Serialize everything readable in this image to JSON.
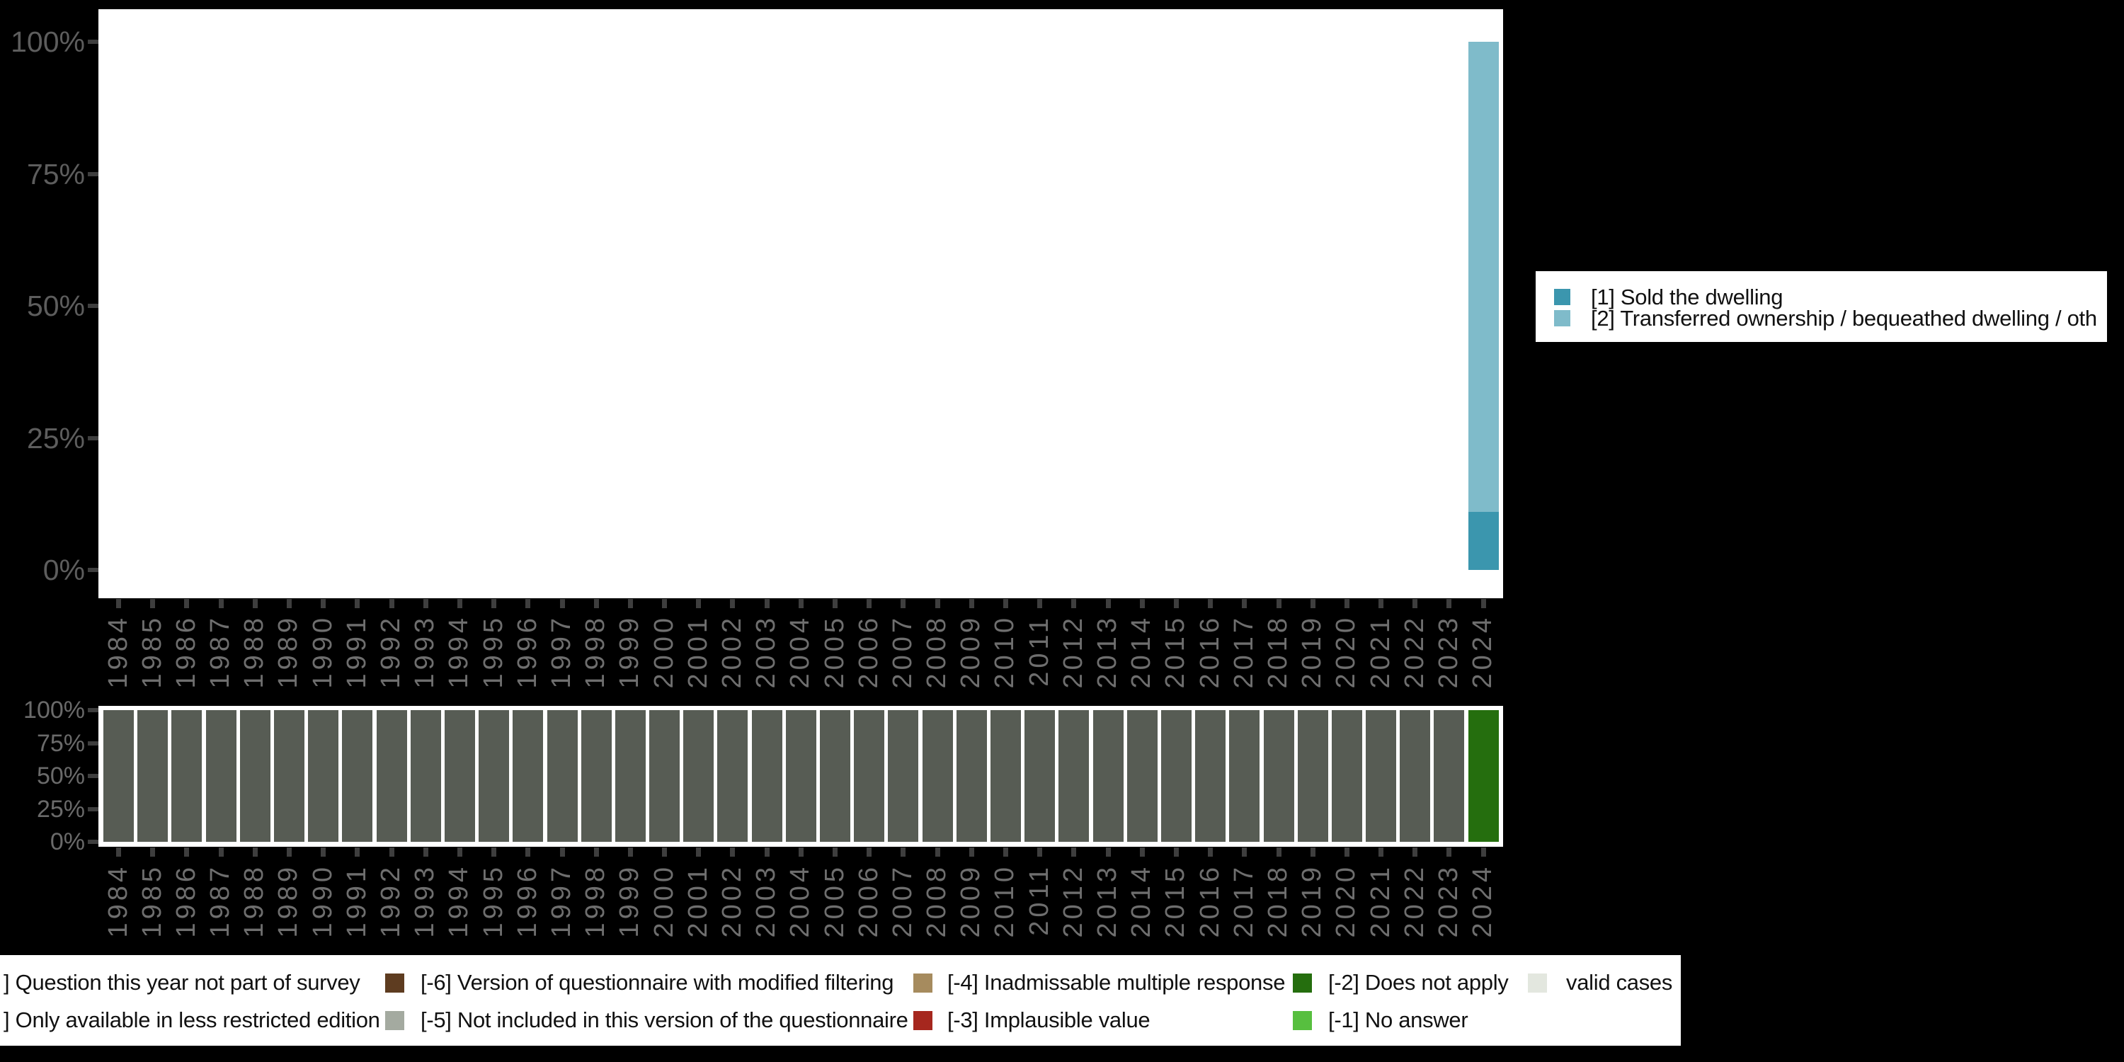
{
  "background_color": "#000000",
  "plot_background_color": "#ffffff",
  "chart_data": [
    {
      "id": "valid-answers-by-year",
      "type": "bar",
      "subtype": "stacked-percent-columns",
      "title": "",
      "xlabel": "",
      "ylabel": "",
      "ylim": [
        0,
        100
      ],
      "grid": false,
      "legend_position": "right",
      "y_ticks": [
        "100%",
        "75%",
        "50%",
        "25%",
        "0%"
      ],
      "categories": [
        "1984",
        "1985",
        "1986",
        "1987",
        "1988",
        "1989",
        "1990",
        "1991",
        "1992",
        "1993",
        "1994",
        "1995",
        "1996",
        "1997",
        "1998",
        "1999",
        "2000",
        "2001",
        "2002",
        "2003",
        "2004",
        "2005",
        "2006",
        "2007",
        "2008",
        "2009",
        "2010",
        "2011",
        "2012",
        "2013",
        "2014",
        "2015",
        "2016",
        "2017",
        "2018",
        "2019",
        "2020",
        "2021",
        "2022",
        "2023",
        "2024"
      ],
      "series": [
        {
          "name": "[1] Sold the dwelling",
          "color": "#3b96ae",
          "values": [
            0,
            0,
            0,
            0,
            0,
            0,
            0,
            0,
            0,
            0,
            0,
            0,
            0,
            0,
            0,
            0,
            0,
            0,
            0,
            0,
            0,
            0,
            0,
            0,
            0,
            0,
            0,
            0,
            0,
            0,
            0,
            0,
            0,
            0,
            0,
            0,
            0,
            0,
            0,
            0,
            11
          ]
        },
        {
          "name": "[2] Transferred ownership / bequeathed dwelling / oth",
          "color": "#7fbbca",
          "values": [
            0,
            0,
            0,
            0,
            0,
            0,
            0,
            0,
            0,
            0,
            0,
            0,
            0,
            0,
            0,
            0,
            0,
            0,
            0,
            0,
            0,
            0,
            0,
            0,
            0,
            0,
            0,
            0,
            0,
            0,
            0,
            0,
            0,
            0,
            0,
            0,
            0,
            0,
            0,
            0,
            89
          ]
        }
      ]
    },
    {
      "id": "missing-values-by-year",
      "type": "bar",
      "subtype": "stacked-percent-columns",
      "title": "",
      "xlabel": "",
      "ylabel": "",
      "ylim": [
        0,
        100
      ],
      "grid": false,
      "legend_position": "bottom",
      "y_ticks": [
        "100%",
        "75%",
        "50%",
        "25%",
        "0%"
      ],
      "categories": [
        "1984",
        "1985",
        "1986",
        "1987",
        "1988",
        "1989",
        "1990",
        "1991",
        "1992",
        "1993",
        "1994",
        "1995",
        "1996",
        "1997",
        "1998",
        "1999",
        "2000",
        "2001",
        "2002",
        "2003",
        "2004",
        "2005",
        "2006",
        "2007",
        "2008",
        "2009",
        "2010",
        "2011",
        "2012",
        "2013",
        "2014",
        "2015",
        "2016",
        "2017",
        "2018",
        "2019",
        "2020",
        "2021",
        "2022",
        "2023",
        "2024"
      ],
      "series": [
        {
          "name": "] Question this year not part of survey",
          "color": "#575c54",
          "values": [
            100,
            100,
            100,
            100,
            100,
            100,
            100,
            100,
            100,
            100,
            100,
            100,
            100,
            100,
            100,
            100,
            100,
            100,
            100,
            100,
            100,
            100,
            100,
            100,
            100,
            100,
            100,
            100,
            100,
            100,
            100,
            100,
            100,
            100,
            100,
            100,
            100,
            100,
            100,
            100,
            0
          ]
        },
        {
          "name": "[-2] Does not apply",
          "color": "#256e0e",
          "values": [
            0,
            0,
            0,
            0,
            0,
            0,
            0,
            0,
            0,
            0,
            0,
            0,
            0,
            0,
            0,
            0,
            0,
            0,
            0,
            0,
            0,
            0,
            0,
            0,
            0,
            0,
            0,
            0,
            0,
            0,
            0,
            0,
            0,
            0,
            0,
            0,
            0,
            0,
            0,
            0,
            100
          ]
        }
      ]
    }
  ],
  "legend_top": {
    "items": [
      {
        "label": "[1] Sold the dwelling",
        "color": "#3b96ae"
      },
      {
        "label": "[2] Transferred ownership / bequeathed dwelling / oth",
        "color": "#7fbbca"
      }
    ]
  },
  "legend_bottom": {
    "rows": [
      [
        {
          "label": "] Question this year not part of survey",
          "color": null
        },
        {
          "label": "[-6] Version of questionnaire with modified filtering",
          "color": "#5e3c20"
        },
        {
          "label": "[-4] Inadmissable multiple response",
          "color": "#a68b5e"
        },
        {
          "label": "[-2] Does not apply",
          "color": "#256e0e"
        },
        {
          "label": "valid cases",
          "color": "#e3e7df"
        }
      ],
      [
        {
          "label": "] Only available in less restricted edition",
          "color": null
        },
        {
          "label": "[-5] Not included in this version of the questionnaire",
          "color": "#a4aaa0"
        },
        {
          "label": "[-3] Implausible value",
          "color": "#a6271e"
        },
        {
          "label": "[-1] No answer",
          "color": "#57bf3f"
        }
      ]
    ]
  }
}
